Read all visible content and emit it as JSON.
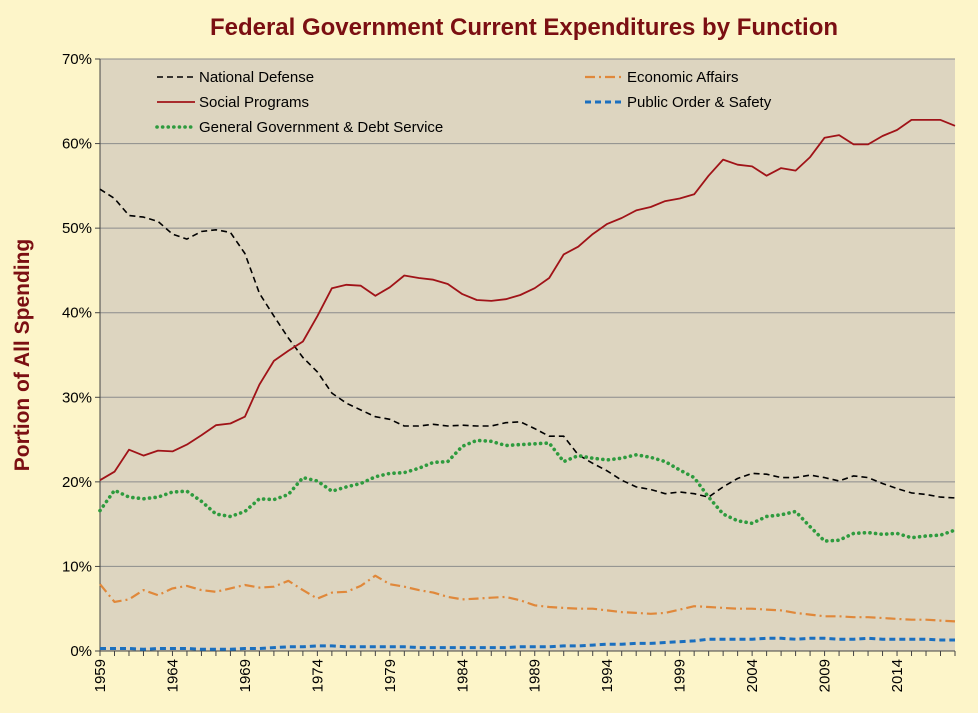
{
  "chart_data": {
    "type": "line",
    "title": "Federal Government Current Expenditures by Function",
    "ylabel": "Portion of All Spending",
    "xlabel": "",
    "x": [
      1959,
      1960,
      1961,
      1962,
      1963,
      1964,
      1965,
      1966,
      1967,
      1968,
      1969,
      1970,
      1971,
      1972,
      1973,
      1974,
      1975,
      1976,
      1977,
      1978,
      1979,
      1980,
      1981,
      1982,
      1983,
      1984,
      1985,
      1986,
      1987,
      1988,
      1989,
      1990,
      1991,
      1992,
      1993,
      1994,
      1995,
      1996,
      1997,
      1998,
      1999,
      2000,
      2001,
      2002,
      2003,
      2004,
      2005,
      2006,
      2007,
      2008,
      2009,
      2010,
      2011,
      2012,
      2013,
      2014,
      2015,
      2016,
      2017,
      2018
    ],
    "xlim": [
      1959,
      2018
    ],
    "x_tick_values": [
      1959,
      1964,
      1969,
      1974,
      1979,
      1984,
      1989,
      1994,
      1999,
      2004,
      2009,
      2014
    ],
    "ylim": [
      0,
      70
    ],
    "y_tick_values": [
      0,
      10,
      20,
      30,
      40,
      50,
      60,
      70
    ],
    "y_tick_labels": [
      "0%",
      "10%",
      "20%",
      "30%",
      "40%",
      "50%",
      "60%",
      "70%"
    ],
    "grid": "horizontal",
    "legend_position": "top",
    "plot_background": "#ddd5c0",
    "series": [
      {
        "name": "National Defense",
        "color": "#000000",
        "style": "dashed",
        "values": [
          54.6,
          53.5,
          51.5,
          51.3,
          50.8,
          49.3,
          48.7,
          49.6,
          49.8,
          49.5,
          47.0,
          42.3,
          39.6,
          37.0,
          34.7,
          33.0,
          30.5,
          29.3,
          28.5,
          27.7,
          27.4,
          26.6,
          26.6,
          26.8,
          26.6,
          26.7,
          26.6,
          26.6,
          27.0,
          27.1,
          26.3,
          25.4,
          25.4,
          23.2,
          22.2,
          21.3,
          20.2,
          19.4,
          19.1,
          18.6,
          18.8,
          18.6,
          18.2,
          19.4,
          20.4,
          21.0,
          20.9,
          20.5,
          20.5,
          20.8,
          20.5,
          20.1,
          20.7,
          20.5,
          19.8,
          19.2,
          18.7,
          18.5,
          18.2,
          18.1
        ]
      },
      {
        "name": "Economic Affairs",
        "color": "#e0883a",
        "style": "dashdot",
        "values": [
          7.9,
          5.8,
          6.1,
          7.2,
          6.6,
          7.4,
          7.7,
          7.2,
          7.0,
          7.4,
          7.8,
          7.5,
          7.6,
          8.3,
          7.2,
          6.2,
          6.9,
          7.0,
          7.7,
          8.9,
          7.9,
          7.6,
          7.2,
          6.9,
          6.4,
          6.1,
          6.2,
          6.3,
          6.4,
          6.0,
          5.4,
          5.2,
          5.1,
          5.0,
          5.0,
          4.8,
          4.6,
          4.5,
          4.4,
          4.5,
          4.9,
          5.3,
          5.2,
          5.1,
          5.0,
          5.0,
          4.9,
          4.8,
          4.5,
          4.3,
          4.1,
          4.1,
          4.0,
          4.0,
          3.9,
          3.8,
          3.7,
          3.7,
          3.6,
          3.5
        ]
      },
      {
        "name": "Social Programs",
        "color": "#a01318",
        "style": "solid",
        "values": [
          20.2,
          21.2,
          23.8,
          23.1,
          23.7,
          23.6,
          24.4,
          25.5,
          26.7,
          26.9,
          27.7,
          31.5,
          34.3,
          35.5,
          36.6,
          39.6,
          42.9,
          43.3,
          43.2,
          42.0,
          43.0,
          44.4,
          44.1,
          43.9,
          43.4,
          42.2,
          41.5,
          41.4,
          41.6,
          42.1,
          42.9,
          44.1,
          46.9,
          47.8,
          49.3,
          50.5,
          51.2,
          52.1,
          52.5,
          53.2,
          53.5,
          54.0,
          56.2,
          58.1,
          57.5,
          57.3,
          56.2,
          57.1,
          56.8,
          58.4,
          60.7,
          61.0,
          59.9,
          59.9,
          60.9,
          61.6,
          62.8,
          62.8,
          62.8,
          62.1
        ]
      },
      {
        "name": "Public Order & Safety",
        "color": "#1a6fbf",
        "style": "dashed",
        "values": [
          0.3,
          0.3,
          0.3,
          0.2,
          0.3,
          0.3,
          0.3,
          0.2,
          0.2,
          0.2,
          0.3,
          0.3,
          0.4,
          0.5,
          0.5,
          0.6,
          0.6,
          0.5,
          0.5,
          0.5,
          0.5,
          0.5,
          0.4,
          0.4,
          0.4,
          0.4,
          0.4,
          0.4,
          0.4,
          0.5,
          0.5,
          0.5,
          0.6,
          0.6,
          0.7,
          0.8,
          0.8,
          0.9,
          0.9,
          1.0,
          1.1,
          1.2,
          1.4,
          1.4,
          1.4,
          1.4,
          1.5,
          1.5,
          1.4,
          1.5,
          1.5,
          1.4,
          1.4,
          1.5,
          1.4,
          1.4,
          1.4,
          1.4,
          1.3,
          1.3
        ]
      },
      {
        "name": "General Government & Debt Service",
        "color": "#2e9b3e",
        "style": "dotted",
        "values": [
          16.6,
          19.0,
          18.2,
          18.0,
          18.2,
          18.8,
          18.9,
          17.7,
          16.2,
          15.9,
          16.5,
          18.0,
          17.9,
          18.5,
          20.5,
          20.1,
          18.9,
          19.4,
          19.8,
          20.6,
          21.0,
          21.1,
          21.6,
          22.3,
          22.4,
          24.2,
          24.9,
          24.8,
          24.3,
          24.4,
          24.5,
          24.6,
          22.4,
          23.1,
          22.8,
          22.6,
          22.8,
          23.2,
          22.9,
          22.4,
          21.4,
          20.5,
          18.2,
          16.2,
          15.4,
          15.1,
          15.9,
          16.1,
          16.5,
          14.7,
          13.0,
          13.1,
          13.9,
          14.0,
          13.8,
          13.9,
          13.4,
          13.6,
          13.7,
          14.3
        ]
      }
    ]
  }
}
